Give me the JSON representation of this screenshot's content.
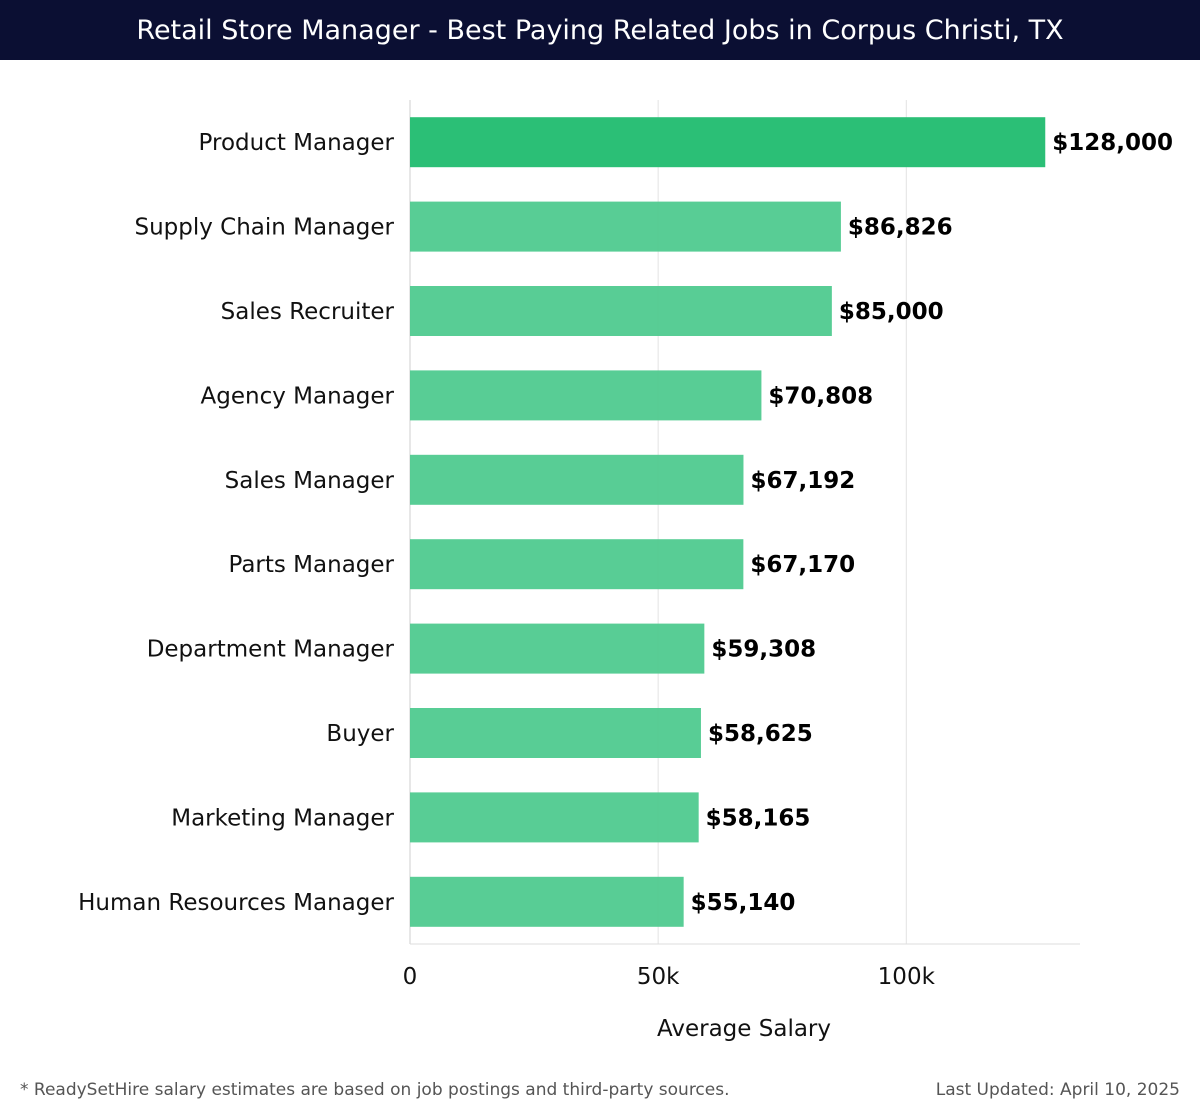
{
  "header": {
    "title": "Retail Store Manager - Best Paying Related Jobs in Corpus Christi, TX"
  },
  "chart_data": {
    "type": "bar",
    "orientation": "horizontal",
    "categories": [
      "Product Manager",
      "Supply Chain Manager",
      "Sales Recruiter",
      "Agency Manager",
      "Sales Manager",
      "Parts Manager",
      "Department Manager",
      "Buyer",
      "Marketing Manager",
      "Human Resources Manager"
    ],
    "values": [
      128000,
      86826,
      85000,
      70808,
      67192,
      67170,
      59308,
      58625,
      58165,
      55140
    ],
    "value_labels": [
      "$128,000",
      "$86,826",
      "$85,000",
      "$70,808",
      "$67,192",
      "$67,170",
      "$59,308",
      "$58,625",
      "$58,165",
      "$55,140"
    ],
    "xlabel": "Average Salary",
    "ylabel": "",
    "xlim": [
      0,
      135000
    ],
    "x_ticks": [
      {
        "value": 0,
        "label": "0"
      },
      {
        "value": 50000,
        "label": "50k"
      },
      {
        "value": 100000,
        "label": "100k"
      }
    ],
    "grid": true,
    "colors": {
      "top": "#2bbf76",
      "other": "#4fca8f"
    }
  },
  "footer": {
    "note": "* ReadySetHire salary estimates are based on job postings and third-party sources.",
    "updated": "Last Updated: April 10, 2025"
  }
}
